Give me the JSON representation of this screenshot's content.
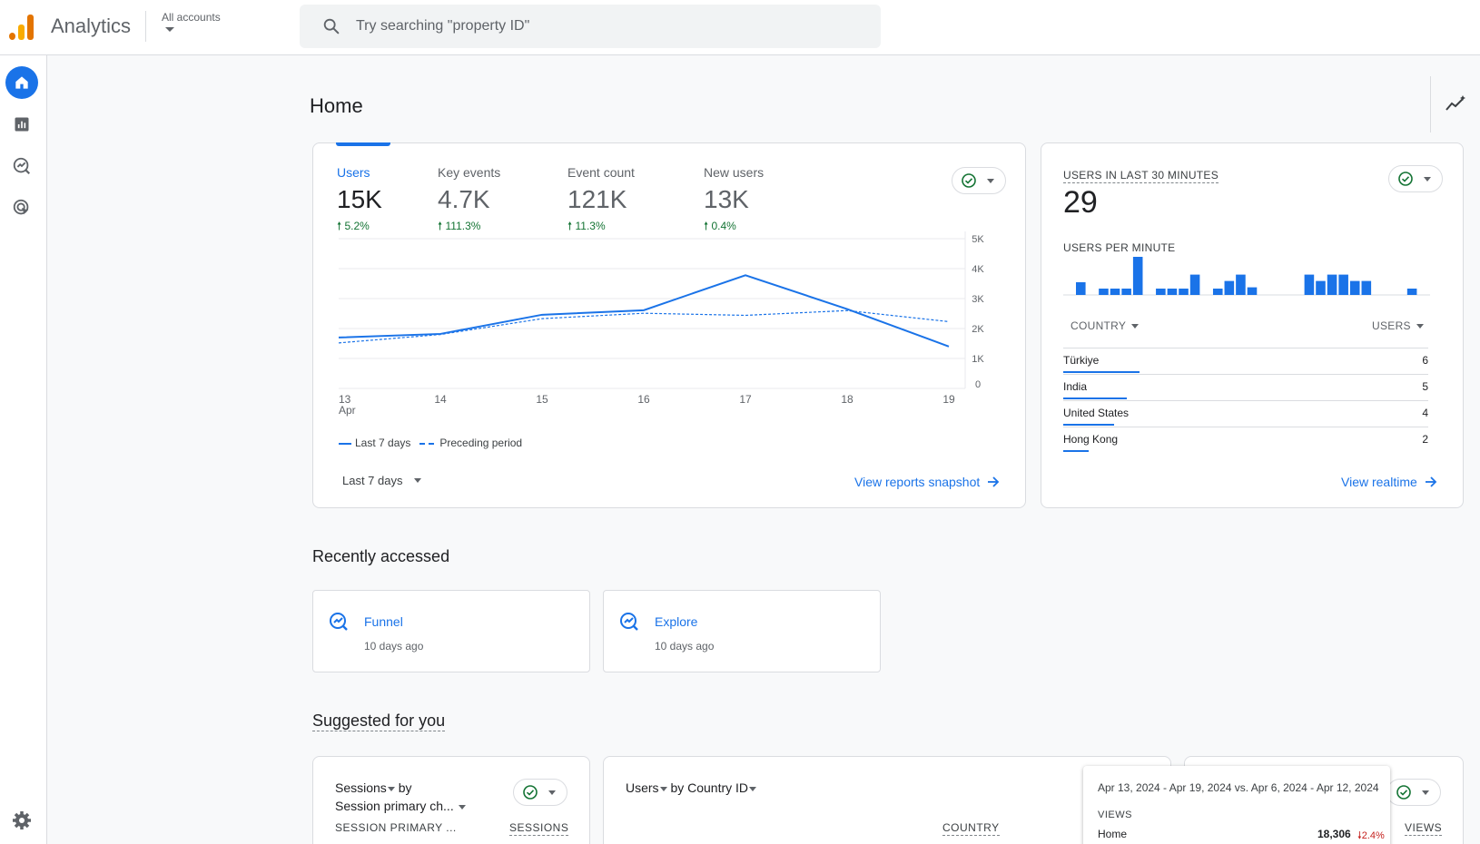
{
  "header": {
    "app_title": "Analytics",
    "accounts_label": "All accounts",
    "search_placeholder": "Try searching \"property ID\""
  },
  "page": {
    "title": "Home"
  },
  "overview": {
    "metrics": [
      {
        "label": "Users",
        "value": "15K",
        "delta": "5.2%"
      },
      {
        "label": "Key events",
        "value": "4.7K",
        "delta": "111.3%"
      },
      {
        "label": "Event count",
        "value": "121K",
        "delta": "11.3%"
      },
      {
        "label": "New users",
        "value": "13K",
        "delta": "0.4%"
      }
    ],
    "date_range": "Last 7 days",
    "link": "View reports snapshot"
  },
  "chart_data": {
    "type": "line",
    "x": [
      "13",
      "14",
      "15",
      "16",
      "17",
      "18",
      "19"
    ],
    "x_sub": [
      "Apr",
      "",
      "",
      "",
      "",
      "",
      ""
    ],
    "series": [
      {
        "name": "Last 7 days",
        "values": [
          1700,
          1820,
          2460,
          2610,
          3780,
          2650,
          1400
        ],
        "style": "solid"
      },
      {
        "name": "Preceding period",
        "values": [
          1520,
          1800,
          2330,
          2510,
          2440,
          2600,
          2230
        ],
        "style": "dashed"
      }
    ],
    "y_ticks": [
      "0",
      "1K",
      "2K",
      "3K",
      "4K",
      "5K"
    ],
    "ylim": [
      0,
      5000
    ],
    "grid": true,
    "color": "#1a73e8"
  },
  "realtime": {
    "heading": "USERS IN LAST 30 MINUTES",
    "value": "29",
    "sub_heading": "USERS PER MINUTE",
    "per_minute": [
      1,
      0,
      0.5,
      0.5,
      0.5,
      3,
      0,
      0.5,
      0.5,
      0.5,
      1.6,
      0,
      0.5,
      1.1,
      1.6,
      0.6,
      0,
      0,
      0,
      0,
      1.6,
      1.1,
      1.6,
      1.6,
      1.1,
      1.1,
      0,
      0,
      0,
      0.5,
      0
    ],
    "col_country": "COUNTRY",
    "col_users": "USERS",
    "rows": [
      {
        "country": "Türkiye",
        "users": "6",
        "share": 1.0
      },
      {
        "country": "India",
        "users": "5",
        "share": 0.83
      },
      {
        "country": "United States",
        "users": "4",
        "share": 0.67
      },
      {
        "country": "Hong Kong",
        "users": "2",
        "share": 0.33
      }
    ],
    "link": "View realtime"
  },
  "recent": {
    "title": "Recently accessed",
    "items": [
      {
        "name": "Funnel",
        "time": "10 days ago"
      },
      {
        "name": "Explore",
        "time": "10 days ago"
      }
    ]
  },
  "suggested": {
    "title": "Suggested for you",
    "card1": {
      "line1": "Sessions",
      "by": " by",
      "line2": "Session primary ch...",
      "col1": "SESSION PRIMARY ...",
      "col2": "SESSIONS"
    },
    "card2": {
      "title": "Users",
      "by": " by Country ID",
      "col1": "COUNTRY"
    },
    "card3": {
      "col1": "VIEWS"
    }
  },
  "tooltip": {
    "dates": "Apr 13, 2024 - Apr 19, 2024 vs. Apr 6, 2024 - Apr 12, 2024",
    "heading": "VIEWS",
    "row_label": "Home",
    "row_value": "18,306",
    "row_delta": "2.4%"
  },
  "colors": {
    "accent": "#1a73e8",
    "positive": "#137333",
    "negative": "#c5221f",
    "logo_orange": "#e37400",
    "logo_yellow": "#f9ab00"
  }
}
